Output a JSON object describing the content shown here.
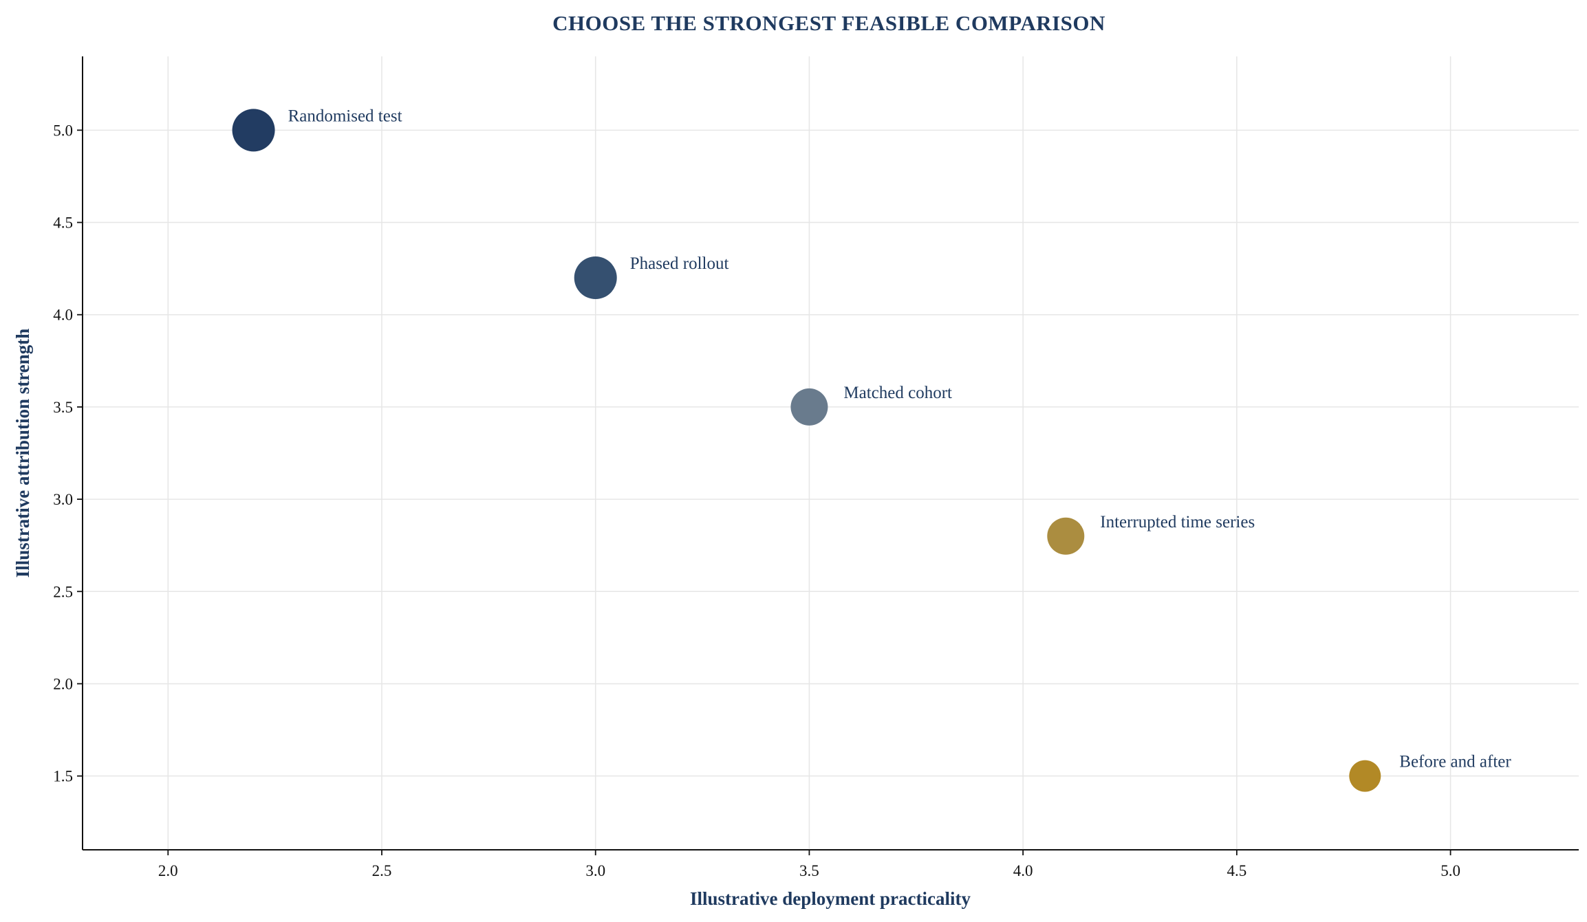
{
  "chart_data": {
    "type": "scatter",
    "title": "CHOOSE THE STRONGEST FEASIBLE COMPARISON",
    "xlabel": "Illustrative deployment practicality",
    "ylabel": "Illustrative attribution strength",
    "xlim": [
      1.8,
      5.3
    ],
    "ylim": [
      1.1,
      5.4
    ],
    "xticks": [
      "2.0",
      "2.5",
      "3.0",
      "3.5",
      "4.0",
      "4.5",
      "5.0"
    ],
    "yticks": [
      "1.5",
      "2.0",
      "2.5",
      "3.0",
      "3.5",
      "4.0",
      "4.5",
      "5.0"
    ],
    "grid": true,
    "legend": "none",
    "points": [
      {
        "label": "Randomised test",
        "x": 2.2,
        "y": 5.0,
        "color": "#1b365d",
        "size": "large"
      },
      {
        "label": "Phased rollout",
        "x": 3.0,
        "y": 4.2,
        "color": "#2e4a6b",
        "size": "large"
      },
      {
        "label": "Matched cohort",
        "x": 3.5,
        "y": 3.5,
        "color": "#647789",
        "size": "medium"
      },
      {
        "label": "Interrupted time series",
        "x": 4.1,
        "y": 2.8,
        "color": "#a8893a",
        "size": "medium"
      },
      {
        "label": "Before and after",
        "x": 4.8,
        "y": 1.5,
        "color": "#b0851f",
        "size": "small"
      }
    ]
  }
}
